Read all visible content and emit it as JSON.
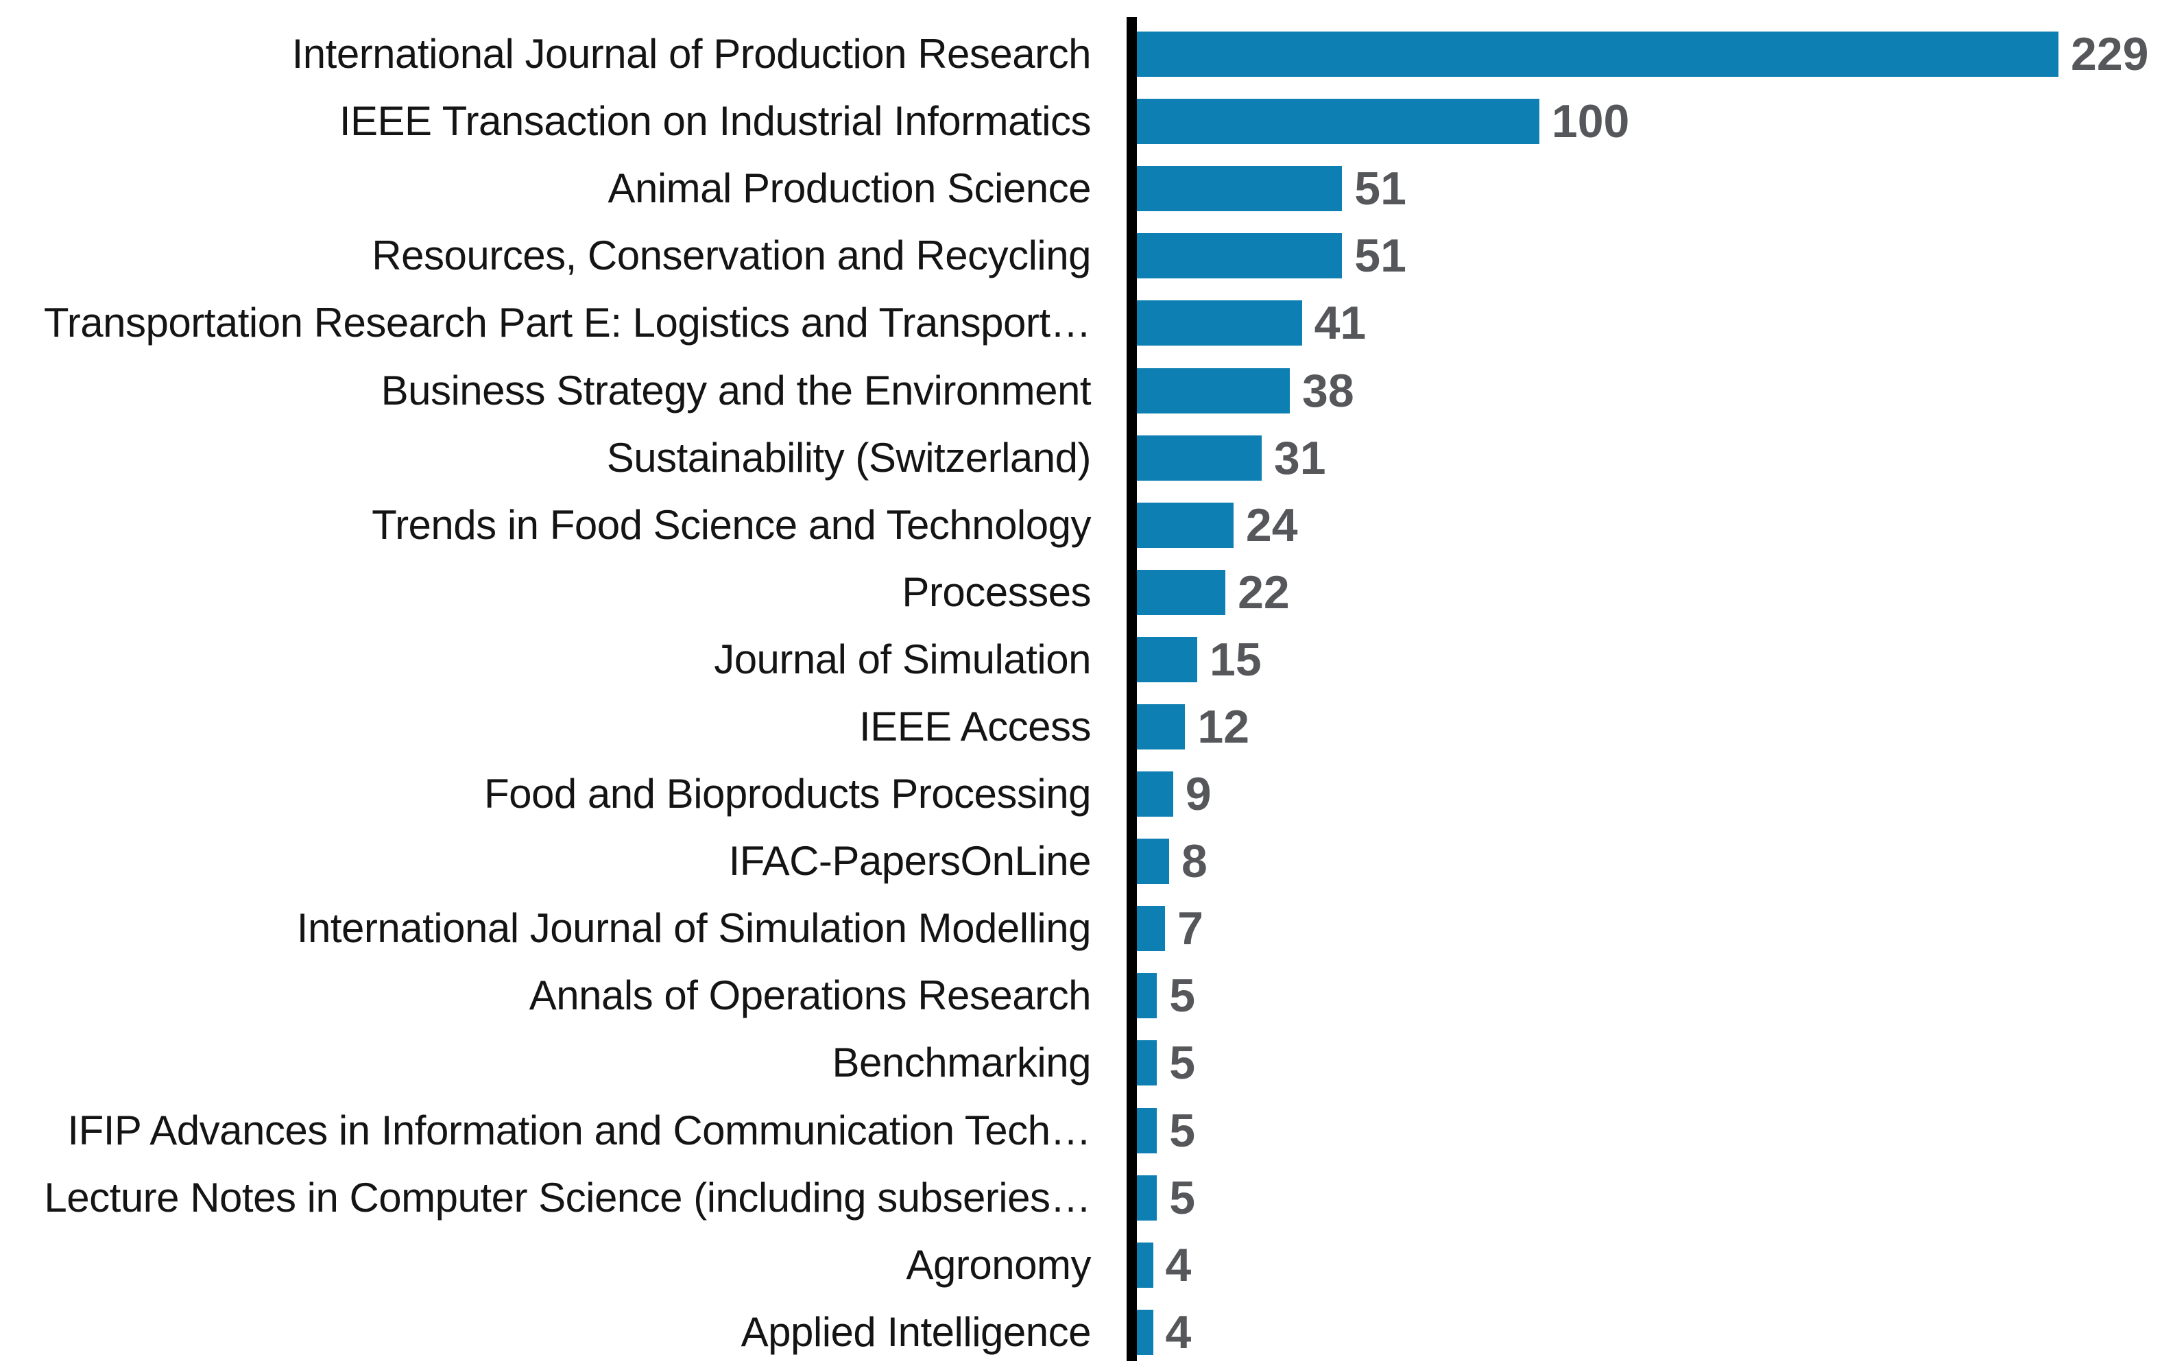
{
  "chart_data": {
    "type": "bar",
    "orientation": "horizontal",
    "title": "",
    "xlabel": "",
    "ylabel": "",
    "xlim": [
      0,
      255
    ],
    "grid": false,
    "legend": false,
    "value_labels_shown": true,
    "bar_color": "#0e7fb2",
    "axis_color": "#000000",
    "value_label_color": "#56575a",
    "category_label_color": "#141414",
    "categories": [
      "International Journal of Production Research",
      "IEEE Transaction on Industrial Informatics",
      "Animal Production Science",
      "Resources, Conservation and Recycling",
      "Transportation Research Part E: Logistics and Transport…",
      "Business Strategy and the Environment",
      "Sustainability (Switzerland)",
      "Trends in Food Science and Technology",
      "Processes",
      "Journal of Simulation",
      "IEEE Access",
      "Food and Bioproducts Processing",
      "IFAC-PapersOnLine",
      "International Journal of Simulation Modelling",
      "Annals of Operations Research",
      "Benchmarking",
      "IFIP Advances in Information and Communication Tech…",
      "Lecture Notes in Computer Science (including subseries…",
      "Agronomy",
      "Applied Intelligence"
    ],
    "values": [
      229,
      100,
      51,
      51,
      41,
      38,
      31,
      24,
      22,
      15,
      12,
      9,
      8,
      7,
      5,
      5,
      5,
      5,
      4,
      4
    ]
  }
}
